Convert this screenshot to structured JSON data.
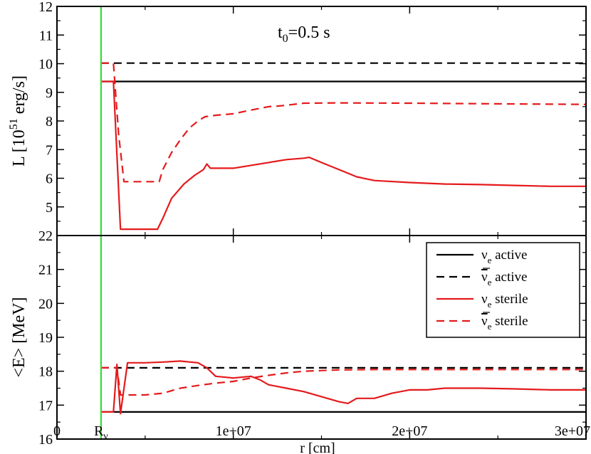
{
  "chart_data": [
    {
      "type": "line",
      "panel": "top",
      "title": "",
      "annotation": {
        "base": "t",
        "sub": "0",
        "rest": "=0.5 s"
      },
      "ylabel": {
        "base": "L [10",
        "sup": "51",
        "rest": " erg/s]"
      },
      "xlabel": "",
      "xlim": [
        0,
        30000000
      ],
      "ylim": [
        4,
        12
      ],
      "yticks": [
        "12",
        "11",
        "10",
        "9",
        "8",
        "7",
        "6",
        "5"
      ],
      "ytick_values": [
        12,
        11,
        10,
        9,
        8,
        7,
        6,
        5
      ],
      "series": [
        {
          "id": "nue_active",
          "color": "#000000",
          "dashed": false,
          "x": [
            2500000,
            30000000
          ],
          "y": [
            9.38,
            9.38
          ]
        },
        {
          "id": "nuebar_active",
          "color": "#000000",
          "dashed": true,
          "x": [
            2500000,
            30000000
          ],
          "y": [
            10.02,
            10.02
          ]
        },
        {
          "id": "nue_sterile",
          "color": "#e41a1c",
          "dashed": false,
          "x": [
            2500000,
            3200000,
            3600000,
            4000000,
            5700000,
            6000000,
            6500000,
            7200000,
            7800000,
            8300000,
            8500000,
            8700000,
            9500000,
            10000000,
            11000000,
            12000000,
            13000000,
            14000000,
            14300000,
            15000000,
            16000000,
            17000000,
            18000000,
            20000000,
            22000000,
            24000000,
            26000000,
            28000000,
            30000000
          ],
          "y": [
            9.38,
            9.38,
            4.22,
            4.22,
            4.22,
            4.6,
            5.3,
            5.8,
            6.1,
            6.3,
            6.5,
            6.35,
            6.35,
            6.35,
            6.45,
            6.55,
            6.65,
            6.7,
            6.73,
            6.55,
            6.3,
            6.05,
            5.92,
            5.85,
            5.8,
            5.78,
            5.75,
            5.72,
            5.72
          ]
        },
        {
          "id": "nuebar_sterile",
          "color": "#e41a1c",
          "dashed": true,
          "x": [
            2500000,
            3200000,
            3500000,
            3800000,
            5800000,
            6000000,
            6500000,
            7000000,
            7500000,
            8000000,
            8400000,
            9000000,
            10000000,
            11000000,
            12000000,
            12500000,
            13000000,
            14000000,
            16000000,
            20000000,
            25000000,
            30000000
          ],
          "y": [
            10.02,
            10.02,
            7.5,
            5.88,
            5.88,
            6.3,
            6.9,
            7.35,
            7.75,
            8.0,
            8.15,
            8.2,
            8.25,
            8.38,
            8.5,
            8.52,
            8.55,
            8.62,
            8.63,
            8.62,
            8.6,
            8.58
          ]
        }
      ]
    },
    {
      "type": "line",
      "panel": "bottom",
      "title": "",
      "ylabel": "<E> [MeV]",
      "xlabel": "r [cm]",
      "xlim": [
        0,
        30000000
      ],
      "ylim": [
        16,
        22
      ],
      "yticks": [
        "22",
        "21",
        "20",
        "19",
        "18",
        "17",
        "16"
      ],
      "ytick_values": [
        22,
        21,
        20,
        19,
        18,
        17,
        16
      ],
      "xticks": [
        "0",
        "1e+07",
        "2e+07",
        "3e+07"
      ],
      "xtick_values": [
        0,
        10000000,
        20000000,
        30000000
      ],
      "special_xtick": {
        "value": 2500000,
        "base": "R",
        "sub": "ν"
      },
      "series": [
        {
          "id": "nue_active",
          "color": "#000000",
          "dashed": false,
          "x": [
            2500000,
            30000000
          ],
          "y": [
            16.8,
            16.8
          ]
        },
        {
          "id": "nuebar_active",
          "color": "#000000",
          "dashed": true,
          "x": [
            2500000,
            30000000
          ],
          "y": [
            18.1,
            18.1
          ]
        },
        {
          "id": "nue_sterile",
          "color": "#e41a1c",
          "dashed": false,
          "x": [
            2500000,
            3200000,
            3400000,
            3600000,
            4000000,
            5000000,
            6000000,
            7000000,
            8000000,
            8500000,
            9000000,
            10000000,
            11000000,
            11500000,
            12000000,
            13000000,
            14000000,
            15000000,
            16000000,
            16500000,
            17000000,
            18000000,
            19000000,
            20000000,
            21000000,
            22000000,
            24000000,
            26000000,
            28000000,
            30000000
          ],
          "y": [
            16.8,
            16.8,
            18.2,
            16.75,
            18.25,
            18.25,
            18.27,
            18.3,
            18.25,
            18.1,
            17.85,
            17.8,
            17.85,
            17.75,
            17.6,
            17.5,
            17.4,
            17.25,
            17.1,
            17.05,
            17.2,
            17.2,
            17.35,
            17.45,
            17.45,
            17.5,
            17.5,
            17.48,
            17.45,
            17.45
          ]
        },
        {
          "id": "nuebar_sterile",
          "color": "#e41a1c",
          "dashed": true,
          "x": [
            2500000,
            3200000,
            3400000,
            3600000,
            4000000,
            5000000,
            6000000,
            7000000,
            8000000,
            9000000,
            10000000,
            11000000,
            12000000,
            13000000,
            14000000,
            15000000,
            16000000,
            18000000,
            20000000,
            25000000,
            30000000
          ],
          "y": [
            18.1,
            18.1,
            18.1,
            17.3,
            17.3,
            17.3,
            17.35,
            17.5,
            17.58,
            17.65,
            17.7,
            17.8,
            17.88,
            17.95,
            18.0,
            18.02,
            18.04,
            18.05,
            18.05,
            18.05,
            18.05
          ]
        }
      ],
      "legend": {
        "placement": "top-right",
        "entries": [
          {
            "symbol": "ν",
            "bar": false,
            "sub": "e",
            "text": " active",
            "color": "#000000",
            "dashed": false
          },
          {
            "symbol": "ν",
            "bar": true,
            "sub": "e",
            "text": " active",
            "color": "#000000",
            "dashed": true
          },
          {
            "symbol": "ν",
            "bar": false,
            "sub": "e",
            "text": " sterile",
            "color": "#e41a1c",
            "dashed": false
          },
          {
            "symbol": "ν",
            "bar": true,
            "sub": "e",
            "text": " sterile",
            "color": "#e41a1c",
            "dashed": true
          }
        ]
      }
    }
  ],
  "vline": {
    "x": 2500000,
    "color": "#33dd33"
  }
}
